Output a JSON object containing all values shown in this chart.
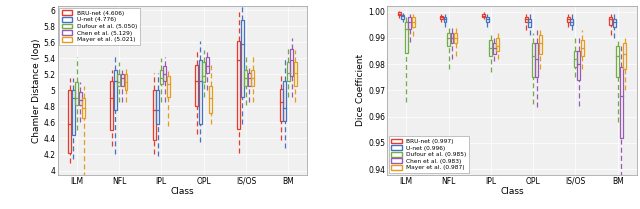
{
  "methods": [
    "BRU-net",
    "U-net",
    "Dufour et al.",
    "Chen et al.",
    "Mayer et al."
  ],
  "colors": [
    "#e8392a",
    "#4472c4",
    "#70ad47",
    "#9b59b6",
    "#e59c1a"
  ],
  "classes": [
    "ILM",
    "NFL",
    "IPL",
    "OPL",
    "IS/OS",
    "BM"
  ],
  "chamfer_legend": [
    "BRU-net (4.606)",
    "U-net (4.776)",
    "Dufour et al. (5.050)",
    "Chen et al. (5.129)",
    "Mayer et al. (5.021)"
  ],
  "dice_legend": [
    "BRU-net (0.997)",
    "U-net (0.996)",
    "Dufour et al. (0.985)",
    "Chen et al. (0.983)",
    "Mayer et al. (0.987)"
  ],
  "chamfer_ylim": [
    3.95,
    6.05
  ],
  "dice_ylim": [
    0.938,
    1.002
  ],
  "chamfer_yticks": [
    4.0,
    4.2,
    4.4,
    4.6,
    4.8,
    5.0,
    5.2,
    5.4,
    5.6,
    5.8,
    6.0
  ],
  "dice_yticks": [
    0.94,
    0.95,
    0.96,
    0.97,
    0.98,
    0.99,
    1.0
  ],
  "chamfer_data": {
    "ILM": {
      "BRU-net": {
        "whislo": 4.09,
        "q1": 4.22,
        "med": 4.58,
        "q3": 5.0,
        "whishi": 5.15
      },
      "U-net": {
        "whislo": 4.14,
        "q1": 4.44,
        "med": 4.9,
        "q3": 5.0,
        "whishi": 5.15
      },
      "Dufour": {
        "whislo": 4.5,
        "q1": 4.82,
        "med": 4.9,
        "q3": 5.1,
        "whishi": 5.42
      },
      "Chen": {
        "whislo": 4.6,
        "q1": 4.82,
        "med": 4.88,
        "q3": 4.98,
        "whishi": 5.1
      },
      "Mayer": {
        "whislo": 3.92,
        "q1": 4.65,
        "med": 4.78,
        "q3": 4.9,
        "whishi": 5.05
      }
    },
    "NFL": {
      "BRU-net": {
        "whislo": 4.3,
        "q1": 4.5,
        "med": 4.9,
        "q3": 5.12,
        "whishi": 5.25
      },
      "U-net": {
        "whislo": 4.2,
        "q1": 4.75,
        "med": 5.12,
        "q3": 5.25,
        "whishi": 5.45
      },
      "Dufour": {
        "whislo": 4.85,
        "q1": 5.05,
        "med": 5.1,
        "q3": 5.2,
        "whishi": 5.35
      },
      "Chen": {
        "whislo": 4.85,
        "q1": 5.05,
        "med": 5.15,
        "q3": 5.2,
        "whishi": 5.25
      },
      "Mayer": {
        "whislo": 4.85,
        "q1": 5.0,
        "med": 5.1,
        "q3": 5.2,
        "whishi": 5.3
      }
    },
    "IPL": {
      "BRU-net": {
        "whislo": 4.2,
        "q1": 4.38,
        "med": 4.75,
        "q3": 5.0,
        "whishi": 5.22
      },
      "U-net": {
        "whislo": 4.18,
        "q1": 4.58,
        "med": 4.76,
        "q3": 5.0,
        "whishi": 5.22
      },
      "Dufour": {
        "whislo": 4.85,
        "q1": 5.08,
        "med": 5.15,
        "q3": 5.25,
        "whishi": 5.4
      },
      "Chen": {
        "whislo": 4.85,
        "q1": 5.12,
        "med": 5.2,
        "q3": 5.3,
        "whishi": 5.42
      },
      "Mayer": {
        "whislo": 4.55,
        "q1": 4.92,
        "med": 5.08,
        "q3": 5.18,
        "whishi": 5.28
      }
    },
    "OPL": {
      "BRU-net": {
        "whislo": 4.45,
        "q1": 4.8,
        "med": 5.12,
        "q3": 5.32,
        "whishi": 5.52
      },
      "U-net": {
        "whislo": 4.35,
        "q1": 4.58,
        "med": 5.12,
        "q3": 5.38,
        "whishi": 5.62
      },
      "Dufour": {
        "whislo": 4.92,
        "q1": 5.1,
        "med": 5.18,
        "q3": 5.35,
        "whishi": 5.5
      },
      "Chen": {
        "whislo": 5.0,
        "q1": 5.22,
        "med": 5.3,
        "q3": 5.42,
        "whishi": 5.52
      },
      "Mayer": {
        "whislo": 4.58,
        "q1": 4.72,
        "med": 4.9,
        "q3": 5.05,
        "whishi": 5.32
      }
    },
    "IS/OS": {
      "BRU-net": {
        "whislo": 4.22,
        "q1": 4.52,
        "med": 5.38,
        "q3": 5.62,
        "whishi": 5.98
      },
      "U-net": {
        "whislo": 4.58,
        "q1": 4.92,
        "med": 5.58,
        "q3": 5.88,
        "whishi": 6.08
      },
      "Dufour": {
        "whislo": 4.82,
        "q1": 5.05,
        "med": 5.15,
        "q3": 5.25,
        "whishi": 5.45
      },
      "Chen": {
        "whislo": 4.85,
        "q1": 5.05,
        "med": 5.15,
        "q3": 5.22,
        "whishi": 5.32
      },
      "Mayer": {
        "whislo": 4.85,
        "q1": 5.05,
        "med": 5.15,
        "q3": 5.25,
        "whishi": 5.45
      }
    },
    "BM": {
      "BRU-net": {
        "whislo": 4.38,
        "q1": 4.62,
        "med": 4.85,
        "q3": 5.02,
        "whishi": 5.22
      },
      "U-net": {
        "whislo": 4.28,
        "q1": 4.62,
        "med": 4.78,
        "q3": 5.12,
        "whishi": 5.42
      },
      "Dufour": {
        "whislo": 4.92,
        "q1": 5.12,
        "med": 5.22,
        "q3": 5.35,
        "whishi": 5.55
      },
      "Chen": {
        "whislo": 4.92,
        "q1": 5.18,
        "med": 5.38,
        "q3": 5.52,
        "whishi": 5.65
      },
      "Mayer": {
        "whislo": 4.85,
        "q1": 5.05,
        "med": 5.22,
        "q3": 5.35,
        "whishi": 5.5
      }
    }
  },
  "dice_data": {
    "ILM": {
      "BRU-net": {
        "whislo": 0.9975,
        "q1": 0.9985,
        "med": 0.9992,
        "q3": 0.9998,
        "whishi": 1.0002
      },
      "U-net": {
        "whislo": 0.9962,
        "q1": 0.9972,
        "med": 0.9982,
        "q3": 0.9988,
        "whishi": 0.9995
      },
      "Dufour": {
        "whislo": 0.9655,
        "q1": 0.9842,
        "med": 0.9932,
        "q3": 0.9962,
        "whishi": 0.9982
      },
      "Chen": {
        "whislo": 0.9885,
        "q1": 0.9932,
        "med": 0.9962,
        "q3": 0.9978,
        "whishi": 0.9992
      },
      "Mayer": {
        "whislo": 0.9908,
        "q1": 0.9942,
        "med": 0.9962,
        "q3": 0.9978,
        "whishi": 0.9992
      }
    },
    "NFL": {
      "BRU-net": {
        "whislo": 0.9962,
        "q1": 0.9972,
        "med": 0.9978,
        "q3": 0.9982,
        "whishi": 0.9992
      },
      "U-net": {
        "whislo": 0.994,
        "q1": 0.996,
        "med": 0.997,
        "q3": 0.998,
        "whishi": 0.999
      },
      "Dufour": {
        "whislo": 0.978,
        "q1": 0.987,
        "med": 0.99,
        "q3": 0.992,
        "whishi": 0.994
      },
      "Chen": {
        "whislo": 0.982,
        "q1": 0.988,
        "med": 0.99,
        "q3": 0.992,
        "whishi": 0.994
      },
      "Mayer": {
        "whislo": 0.983,
        "q1": 0.988,
        "med": 0.99,
        "q3": 0.992,
        "whishi": 0.994
      }
    },
    "IPL": {
      "BRU-net": {
        "whislo": 0.9972,
        "q1": 0.9978,
        "med": 0.9982,
        "q3": 0.9992,
        "whishi": 0.9998
      },
      "U-net": {
        "whislo": 0.994,
        "q1": 0.996,
        "med": 0.997,
        "q3": 0.998,
        "whishi": 0.999
      },
      "Dufour": {
        "whislo": 0.977,
        "q1": 0.983,
        "med": 0.986,
        "q3": 0.989,
        "whishi": 0.992
      },
      "Chen": {
        "whislo": 0.981,
        "q1": 0.984,
        "med": 0.986,
        "q3": 0.988,
        "whishi": 0.99
      },
      "Mayer": {
        "whislo": 0.982,
        "q1": 0.985,
        "med": 0.987,
        "q3": 0.99,
        "whishi": 0.993
      }
    },
    "OPL": {
      "BRU-net": {
        "whislo": 0.993,
        "q1": 0.996,
        "med": 0.997,
        "q3": 0.998,
        "whishi": 0.999
      },
      "U-net": {
        "whislo": 0.991,
        "q1": 0.994,
        "med": 0.996,
        "q3": 0.997,
        "whishi": 0.999
      },
      "Dufour": {
        "whislo": 0.9648,
        "q1": 0.9752,
        "med": 0.983,
        "q3": 0.988,
        "whishi": 0.992
      },
      "Chen": {
        "whislo": 0.9638,
        "q1": 0.9752,
        "med": 0.982,
        "q3": 0.988,
        "whishi": 0.993
      },
      "Mayer": {
        "whislo": 0.978,
        "q1": 0.984,
        "med": 0.988,
        "q3": 0.991,
        "whishi": 0.994
      }
    },
    "IS/OS": {
      "BRU-net": {
        "whislo": 0.994,
        "q1": 0.996,
        "med": 0.997,
        "q3": 0.998,
        "whishi": 0.999
      },
      "U-net": {
        "whislo": 0.993,
        "q1": 0.995,
        "med": 0.996,
        "q3": 0.997,
        "whishi": 0.999
      },
      "Dufour": {
        "whislo": 0.975,
        "q1": 0.979,
        "med": 0.982,
        "q3": 0.985,
        "whishi": 0.99
      },
      "Chen": {
        "whislo": 0.964,
        "q1": 0.974,
        "med": 0.98,
        "q3": 0.985,
        "whishi": 0.991
      },
      "Mayer": {
        "whislo": 0.978,
        "q1": 0.983,
        "med": 0.986,
        "q3": 0.989,
        "whishi": 0.993
      }
    },
    "BM": {
      "BRU-net": {
        "whislo": 0.991,
        "q1": 0.995,
        "med": 0.997,
        "q3": 0.998,
        "whishi": 0.999
      },
      "U-net": {
        "whislo": 0.99,
        "q1": 0.994,
        "med": 0.996,
        "q3": 0.997,
        "whishi": 0.999
      },
      "Dufour": {
        "whislo": 0.958,
        "q1": 0.975,
        "med": 0.983,
        "q3": 0.987,
        "whishi": 0.99
      },
      "Chen": {
        "whislo": 0.928,
        "q1": 0.952,
        "med": 0.968,
        "q3": 0.979,
        "whishi": 0.987
      },
      "Mayer": {
        "whislo": 0.97,
        "q1": 0.978,
        "med": 0.984,
        "q3": 0.988,
        "whishi": 0.991
      }
    }
  }
}
